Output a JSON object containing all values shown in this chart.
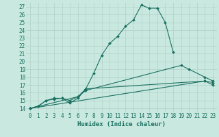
{
  "xlabel": "Humidex (Indice chaleur)",
  "ylabel": "",
  "bg_color": "#c8e8e0",
  "line_color": "#1a7060",
  "grid_color": "#b0d0c8",
  "xlim": [
    -0.5,
    23.5
  ],
  "ylim": [
    13.5,
    27.5
  ],
  "xticks": [
    0,
    1,
    2,
    3,
    4,
    5,
    6,
    7,
    8,
    9,
    10,
    11,
    12,
    13,
    14,
    15,
    16,
    17,
    18,
    19,
    20,
    21,
    22,
    23
  ],
  "yticks": [
    14,
    15,
    16,
    17,
    18,
    19,
    20,
    21,
    22,
    23,
    24,
    25,
    26,
    27
  ],
  "lines": [
    {
      "x": [
        0,
        1,
        2,
        3,
        4,
        5,
        6,
        7,
        8,
        9,
        10,
        11,
        12,
        13,
        14,
        15,
        16,
        17,
        18
      ],
      "y": [
        14.0,
        14.3,
        15.0,
        15.2,
        15.3,
        14.7,
        15.3,
        16.5,
        18.5,
        20.8,
        22.3,
        23.2,
        24.5,
        25.3,
        27.2,
        26.8,
        26.8,
        25.0,
        21.2
      ]
    },
    {
      "x": [
        0,
        1,
        2,
        3,
        4,
        5,
        6,
        7,
        19,
        20,
        22,
        23
      ],
      "y": [
        14.0,
        14.3,
        15.0,
        15.3,
        15.3,
        15.0,
        15.5,
        16.3,
        19.5,
        19.0,
        18.0,
        17.5
      ]
    },
    {
      "x": [
        0,
        6,
        7,
        22,
        23
      ],
      "y": [
        14.0,
        15.5,
        16.5,
        17.5,
        17.3
      ]
    },
    {
      "x": [
        0,
        22,
        23
      ],
      "y": [
        14.0,
        17.5,
        17.0
      ]
    }
  ]
}
